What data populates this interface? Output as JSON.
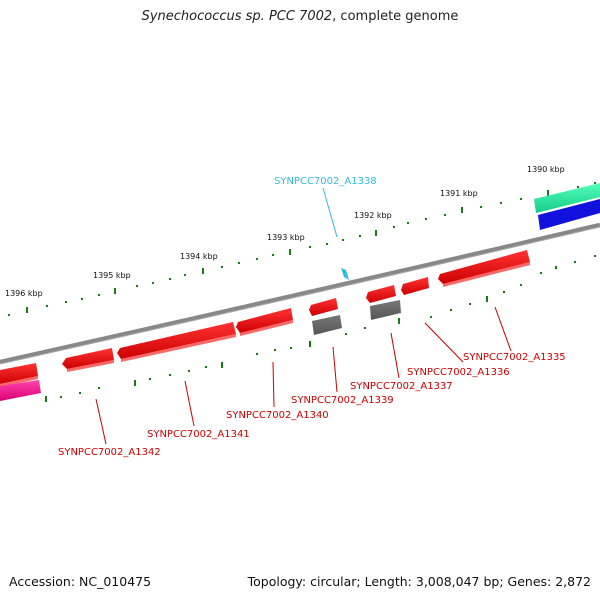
{
  "title": {
    "species": "Synechococcus sp. PCC 7002",
    "suffix": ", complete genome"
  },
  "footer": {
    "accession": "Accession: NC_010475",
    "summary": "Topology: circular; Length: 3,008,047 bp; Genes: 2,872"
  },
  "scale": {
    "ticks": [
      {
        "label": "1390 kbp",
        "kbp": 1390
      },
      {
        "label": "1391 kbp",
        "kbp": 1391
      },
      {
        "label": "1392 kbp",
        "kbp": 1392
      },
      {
        "label": "1393 kbp",
        "kbp": 1393
      },
      {
        "label": "1394 kbp",
        "kbp": 1394
      },
      {
        "label": "1395 kbp",
        "kbp": 1395
      },
      {
        "label": "1396 kbp",
        "kbp": 1396
      }
    ]
  },
  "features": [
    {
      "name": "SYNPCC7002_A1335",
      "color": "#dd1111"
    },
    {
      "name": "SYNPCC7002_A1336",
      "color": "#dd1111"
    },
    {
      "name": "SYNPCC7002_A1337",
      "color": "#dd1111"
    },
    {
      "name": "SYNPCC7002_A1339",
      "color": "#dd1111"
    },
    {
      "name": "SYNPCC7002_A1340",
      "color": "#dd1111"
    },
    {
      "name": "SYNPCC7002_A1341",
      "color": "#dd1111"
    },
    {
      "name": "SYNPCC7002_A1342",
      "color": "#dd1111"
    },
    {
      "name": "SYNPCC7002_A1338",
      "color": "#33bbdd"
    }
  ],
  "colors": {
    "backbone": "#888888",
    "tick": "#1a7a1a",
    "gene_red": "#ee1111",
    "gene_gray": "#666666",
    "gene_green": "#22ee99",
    "gene_blue": "#1111dd",
    "gene_magenta": "#ee1188",
    "label_red": "#cc0000",
    "label_cyan": "#33bbdd"
  }
}
